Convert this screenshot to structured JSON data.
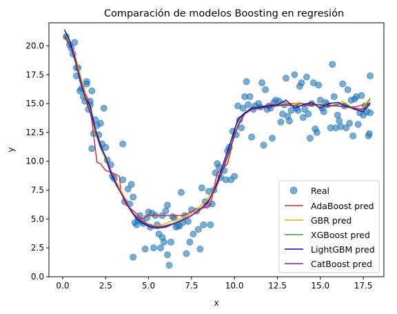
{
  "chart_data": {
    "type": "scatter",
    "title": "Comparación de modelos Boosting en regresión",
    "xlabel": "x",
    "ylabel": "y",
    "xlim": [
      -0.8,
      18.7
    ],
    "ylim": [
      0,
      22.0
    ],
    "xticks": [
      0.0,
      2.5,
      5.0,
      7.5,
      10.0,
      12.5,
      15.0,
      17.5
    ],
    "yticks": [
      0.0,
      2.5,
      5.0,
      7.5,
      10.0,
      12.5,
      15.0,
      17.5,
      20.0
    ],
    "xtick_labels": [
      "0.0",
      "2.5",
      "5.0",
      "7.5",
      "10.0",
      "12.5",
      "15.0",
      "17.5"
    ],
    "ytick_labels": [
      "0.0",
      "2.5",
      "5.0",
      "7.5",
      "10.0",
      "12.5",
      "15.0",
      "17.5",
      "20.0"
    ],
    "grid": false,
    "legend_position": "lower-right",
    "scatter": {
      "name": "Real",
      "color": "#1f77b4",
      "points": [
        [
          0.2,
          20.8
        ],
        [
          0.4,
          20.1
        ],
        [
          0.5,
          19.8
        ],
        [
          0.6,
          19.3
        ],
        [
          0.7,
          20.3
        ],
        [
          0.8,
          18.1
        ],
        [
          0.8,
          17.4
        ],
        [
          0.9,
          18.1
        ],
        [
          1.0,
          16.1
        ],
        [
          1.1,
          16.3
        ],
        [
          1.2,
          15.6
        ],
        [
          1.3,
          15.2
        ],
        [
          1.4,
          16.9
        ],
        [
          1.4,
          16.7
        ],
        [
          1.5,
          14.5
        ],
        [
          1.6,
          15.2
        ],
        [
          1.6,
          14.9
        ],
        [
          1.7,
          16.1
        ],
        [
          1.7,
          11.1
        ],
        [
          1.8,
          12.4
        ],
        [
          1.9,
          13.6
        ],
        [
          2.0,
          13.1
        ],
        [
          2.1,
          12.3
        ],
        [
          2.2,
          13.3
        ],
        [
          2.3,
          11.5
        ],
        [
          2.4,
          14.6
        ],
        [
          2.5,
          11.2
        ],
        [
          2.6,
          10.1
        ],
        [
          2.8,
          9.7
        ],
        [
          2.9,
          8.7
        ],
        [
          3.0,
          8.5
        ],
        [
          3.5,
          11.5
        ],
        [
          3.5,
          8.4
        ],
        [
          3.6,
          6.5
        ],
        [
          3.8,
          7.6
        ],
        [
          3.9,
          6.3
        ],
        [
          4.0,
          8.0
        ],
        [
          4.1,
          6.9
        ],
        [
          4.1,
          1.7
        ],
        [
          4.2,
          4.7
        ],
        [
          4.3,
          4.5
        ],
        [
          4.4,
          4.9
        ],
        [
          4.5,
          5.3
        ],
        [
          4.6,
          4.8
        ],
        [
          4.7,
          4.6
        ],
        [
          4.8,
          2.4
        ],
        [
          4.9,
          5.1
        ],
        [
          5.0,
          5.6
        ],
        [
          5.1,
          4.3
        ],
        [
          5.2,
          5.5
        ],
        [
          5.3,
          2.5
        ],
        [
          5.4,
          5.3
        ],
        [
          5.5,
          4.5
        ],
        [
          5.6,
          3.7
        ],
        [
          5.7,
          2.5
        ],
        [
          5.8,
          3.4
        ],
        [
          5.8,
          5.3
        ],
        [
          5.9,
          3.0
        ],
        [
          6.0,
          5.7
        ],
        [
          6.1,
          6.2
        ],
        [
          6.1,
          1.9
        ],
        [
          6.2,
          1.0
        ],
        [
          6.3,
          3.0
        ],
        [
          6.4,
          5.2
        ],
        [
          6.5,
          5.1
        ],
        [
          6.6,
          4.3
        ],
        [
          6.7,
          4.4
        ],
        [
          6.8,
          4.4
        ],
        [
          6.9,
          7.3
        ],
        [
          7.0,
          4.7
        ],
        [
          7.1,
          5.3
        ],
        [
          7.2,
          2.0
        ],
        [
          7.3,
          4.8
        ],
        [
          7.4,
          3.0
        ],
        [
          7.5,
          5.8
        ],
        [
          7.6,
          3.7
        ],
        [
          7.8,
          5.7
        ],
        [
          7.9,
          4.1
        ],
        [
          8.0,
          2.4
        ],
        [
          8.1,
          7.7
        ],
        [
          8.2,
          4.5
        ],
        [
          8.3,
          6.5
        ],
        [
          8.4,
          6.2
        ],
        [
          8.5,
          7.4
        ],
        [
          8.6,
          4.5
        ],
        [
          8.7,
          6.3
        ],
        [
          8.8,
          7.5
        ],
        [
          8.9,
          9.0
        ],
        [
          9.0,
          9.8
        ],
        [
          9.1,
          9.5
        ],
        [
          9.2,
          8.6
        ],
        [
          9.4,
          9.2
        ],
        [
          9.5,
          8.4
        ],
        [
          9.6,
          10.9
        ],
        [
          9.7,
          11.2
        ],
        [
          9.8,
          8.4
        ],
        [
          9.9,
          12.6
        ],
        [
          10.0,
          8.7
        ],
        [
          10.1,
          12.3
        ],
        [
          10.2,
          14.8
        ],
        [
          10.3,
          13.6
        ],
        [
          10.4,
          12.9
        ],
        [
          10.5,
          14.6
        ],
        [
          10.6,
          15.6
        ],
        [
          10.7,
          16.9
        ],
        [
          10.8,
          14.9
        ],
        [
          10.9,
          15.6
        ],
        [
          11.0,
          12.1
        ],
        [
          11.1,
          14.5
        ],
        [
          11.2,
          14.8
        ],
        [
          11.4,
          15.0
        ],
        [
          11.5,
          14.7
        ],
        [
          11.6,
          16.8
        ],
        [
          11.7,
          11.4
        ],
        [
          11.8,
          16.2
        ],
        [
          11.9,
          14.5
        ],
        [
          12.0,
          14.8
        ],
        [
          12.1,
          14.6
        ],
        [
          12.2,
          12.0
        ],
        [
          12.3,
          15.1
        ],
        [
          12.4,
          15.3
        ],
        [
          12.6,
          15.2
        ],
        [
          12.7,
          13.4
        ],
        [
          12.8,
          14.1
        ],
        [
          12.9,
          14.9
        ],
        [
          13.0,
          17.2
        ],
        [
          13.1,
          13.9
        ],
        [
          13.2,
          13.5
        ],
        [
          13.3,
          14.4
        ],
        [
          13.5,
          17.5
        ],
        [
          13.6,
          14.6
        ],
        [
          13.7,
          14.4
        ],
        [
          13.8,
          16.5
        ],
        [
          13.9,
          16.8
        ],
        [
          14.0,
          13.8
        ],
        [
          14.1,
          14.5
        ],
        [
          14.2,
          17.3
        ],
        [
          14.3,
          14.1
        ],
        [
          14.4,
          12.0
        ],
        [
          14.5,
          15.0
        ],
        [
          14.6,
          16.8
        ],
        [
          14.7,
          12.8
        ],
        [
          14.8,
          12.5
        ],
        [
          14.9,
          16.6
        ],
        [
          15.0,
          15.3
        ],
        [
          15.1,
          14.6
        ],
        [
          15.2,
          14.3
        ],
        [
          15.3,
          15.1
        ],
        [
          15.4,
          14.9
        ],
        [
          15.6,
          12.9
        ],
        [
          15.7,
          18.4
        ],
        [
          15.8,
          15.6
        ],
        [
          15.9,
          12.9
        ],
        [
          16.0,
          14.0
        ],
        [
          16.1,
          13.5
        ],
        [
          16.2,
          13.0
        ],
        [
          16.3,
          16.7
        ],
        [
          16.4,
          14.8
        ],
        [
          16.5,
          12.9
        ],
        [
          16.6,
          16.2
        ],
        [
          16.7,
          13.3
        ],
        [
          16.8,
          15.3
        ],
        [
          16.9,
          12.2
        ],
        [
          17.0,
          15.4
        ],
        [
          17.1,
          15.6
        ],
        [
          17.2,
          13.2
        ],
        [
          17.3,
          14.2
        ],
        [
          17.4,
          15.7
        ],
        [
          17.5,
          14.0
        ],
        [
          17.6,
          14.8
        ],
        [
          17.7,
          14.3
        ],
        [
          17.8,
          12.2
        ],
        [
          17.85,
          12.4
        ],
        [
          17.9,
          17.4
        ],
        [
          17.9,
          14.2
        ]
      ]
    },
    "series": [
      {
        "name": "AdaBoost pred",
        "color": "#d62728",
        "x": [
          0.1,
          0.5,
          0.7,
          1.0,
          1.3,
          1.5,
          1.7,
          1.8,
          2.0,
          2.2,
          2.5,
          2.9,
          3.3,
          3.4,
          3.7,
          4.2,
          4.6,
          5.0,
          6.0,
          7.0,
          7.6,
          8.0,
          8.3,
          8.6,
          8.8,
          9.0,
          9.3,
          9.6,
          9.8,
          10.0,
          10.3,
          10.6,
          11.0,
          11.5,
          12.0,
          13.0,
          14.0,
          15.0,
          16.0,
          17.0,
          17.5,
          17.9
        ],
        "y": [
          21.0,
          20.0,
          19.0,
          17.5,
          16.0,
          15.3,
          13.5,
          12.3,
          9.9,
          9.8,
          9.2,
          9.0,
          8.7,
          7.3,
          6.2,
          5.6,
          5.0,
          5.3,
          5.3,
          5.3,
          5.7,
          5.9,
          6.0,
          6.2,
          7.6,
          9.0,
          9.3,
          9.8,
          11.0,
          12.8,
          13.8,
          14.2,
          14.5,
          14.7,
          14.9,
          15.0,
          15.0,
          14.9,
          14.8,
          14.7,
          14.9,
          15.0
        ]
      },
      {
        "name": "GBR pred",
        "color": "#ffa500",
        "x": [
          0.1,
          0.5,
          0.8,
          1.1,
          1.4,
          1.6,
          1.8,
          2.0,
          2.3,
          2.6,
          3.0,
          3.5,
          3.9,
          4.3,
          4.8,
          5.3,
          5.8,
          6.3,
          6.8,
          7.3,
          7.8,
          8.3,
          8.8,
          9.2,
          9.6,
          10.0,
          10.4,
          10.8,
          11.3,
          11.8,
          12.3,
          12.8,
          13.3,
          13.8,
          14.3,
          14.8,
          15.3,
          15.8,
          16.3,
          16.8,
          17.3,
          17.9
        ],
        "y": [
          20.8,
          20.0,
          18.8,
          17.0,
          15.5,
          14.5,
          13.2,
          12.2,
          11.0,
          9.8,
          8.5,
          7.2,
          5.9,
          5.1,
          4.7,
          4.4,
          4.5,
          4.8,
          5.0,
          5.3,
          5.8,
          6.5,
          7.6,
          9.0,
          10.5,
          12.2,
          13.8,
          14.4,
          14.6,
          14.7,
          14.9,
          15.0,
          14.9,
          15.1,
          14.8,
          15.0,
          14.7,
          14.9,
          15.2,
          14.7,
          14.3,
          15.5
        ]
      },
      {
        "name": "XGBoost pred",
        "color": "#2ca02c",
        "x": [
          0.1,
          0.5,
          0.8,
          1.1,
          1.4,
          1.7,
          1.9,
          2.2,
          2.5,
          2.8,
          3.2,
          3.6,
          4.0,
          4.4,
          4.9,
          5.4,
          5.9,
          6.4,
          6.9,
          7.4,
          7.9,
          8.4,
          8.9,
          9.3,
          9.7,
          10.1,
          10.5,
          10.9,
          11.4,
          11.9,
          12.4,
          12.9,
          13.4,
          13.9,
          14.4,
          14.9,
          15.4,
          15.9,
          16.4,
          16.9,
          17.4,
          17.9
        ],
        "y": [
          21.0,
          20.0,
          18.5,
          16.8,
          15.0,
          13.8,
          12.5,
          11.2,
          10.2,
          9.0,
          7.8,
          6.7,
          5.6,
          4.9,
          4.5,
          4.3,
          4.4,
          4.6,
          4.9,
          5.2,
          5.7,
          6.4,
          7.6,
          9.1,
          10.8,
          12.6,
          14.0,
          14.5,
          14.7,
          14.8,
          14.9,
          14.9,
          14.8,
          15.0,
          14.8,
          14.9,
          14.7,
          14.9,
          15.0,
          14.6,
          14.3,
          15.4
        ]
      },
      {
        "name": "LightGBM pred",
        "color": "#0000cc",
        "x": [
          0.1,
          0.4,
          0.7,
          1.0,
          1.3,
          1.6,
          1.9,
          2.2,
          2.5,
          2.8,
          3.1,
          3.5,
          3.9,
          4.3,
          4.7,
          5.1,
          5.5,
          6.0,
          6.5,
          7.0,
          7.5,
          8.0,
          8.5,
          9.0,
          9.4,
          9.8,
          10.2,
          10.6,
          11.0,
          11.5,
          12.0,
          12.5,
          13.0,
          13.5,
          14.0,
          14.5,
          15.0,
          15.5,
          16.0,
          16.5,
          17.0,
          17.5,
          17.9
        ],
        "y": [
          21.4,
          20.5,
          19.0,
          17.0,
          15.6,
          14.8,
          12.8,
          11.3,
          10.4,
          9.0,
          8.0,
          7.0,
          5.9,
          5.0,
          4.6,
          4.3,
          4.2,
          4.3,
          4.6,
          4.9,
          5.3,
          5.8,
          6.5,
          8.2,
          10.0,
          11.8,
          13.6,
          14.2,
          14.6,
          14.7,
          14.8,
          14.9,
          15.3,
          14.6,
          14.9,
          15.1,
          14.6,
          15.0,
          15.1,
          14.8,
          14.5,
          14.3,
          15.1
        ]
      },
      {
        "name": "CatBoost pred",
        "color": "#8b1a8b",
        "x": [
          0.1,
          0.5,
          0.8,
          1.1,
          1.4,
          1.7,
          2.0,
          2.3,
          2.6,
          2.9,
          3.3,
          3.7,
          4.1,
          4.5,
          5.0,
          5.5,
          6.0,
          6.5,
          7.0,
          7.5,
          8.0,
          8.5,
          9.0,
          9.4,
          9.8,
          10.2,
          10.6,
          11.0,
          11.5,
          12.0,
          12.5,
          13.0,
          13.5,
          14.0,
          14.5,
          15.0,
          15.5,
          16.0,
          16.5,
          17.0,
          17.5,
          17.9
        ],
        "y": [
          20.8,
          19.8,
          18.3,
          16.7,
          15.2,
          13.7,
          12.4,
          11.1,
          10.0,
          8.8,
          7.5,
          6.4,
          5.5,
          4.9,
          4.5,
          4.3,
          4.4,
          4.6,
          4.9,
          5.3,
          5.8,
          6.6,
          8.0,
          9.6,
          11.4,
          13.1,
          14.1,
          14.5,
          14.6,
          14.7,
          14.8,
          14.9,
          14.8,
          14.8,
          14.9,
          14.9,
          14.8,
          14.8,
          14.7,
          14.6,
          14.5,
          14.9
        ]
      }
    ]
  }
}
